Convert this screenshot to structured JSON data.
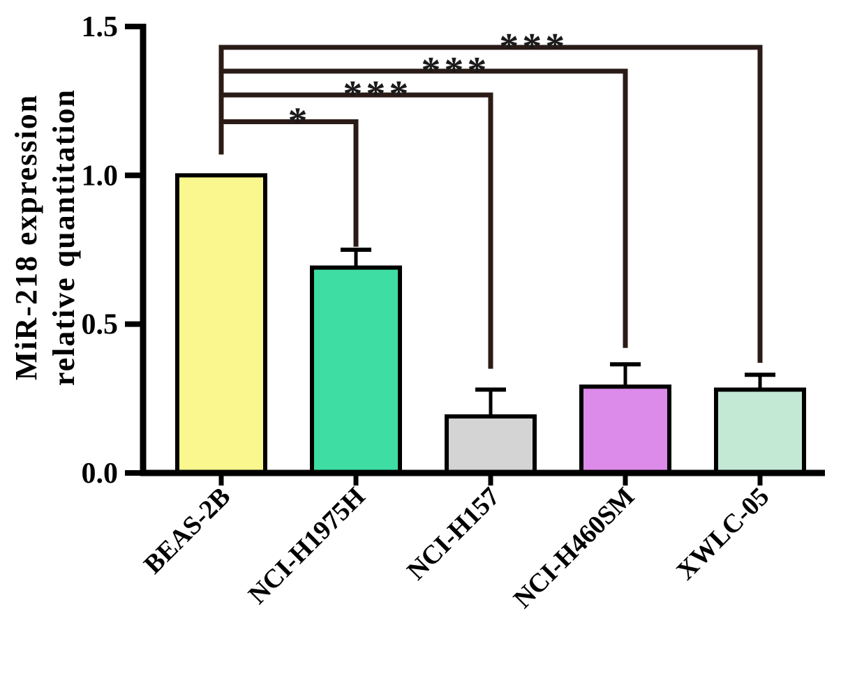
{
  "figure": {
    "description": "Bar chart of MiR-218 expression relative quantitation in five cell lines with significance brackets"
  },
  "chart_data": {
    "type": "bar",
    "title": "",
    "ylabel_lines": [
      "MiR-218 expression",
      "relative quantitation"
    ],
    "xlabel": "",
    "categories": [
      "BEAS-2B",
      "NCI-H1975H",
      "NCI-H157",
      "NCI-H460SM",
      "XWLC-05"
    ],
    "values": [
      1.0,
      0.69,
      0.19,
      0.29,
      0.28
    ],
    "errors": [
      0,
      0.06,
      0.09,
      0.075,
      0.05
    ],
    "bar_colors": [
      "#FAF78E",
      "#3EDDA4",
      "#D4D4D4",
      "#DC8BEA",
      "#C3E9D5"
    ],
    "bar_outline_color": "#000000",
    "axis_color": "#000000",
    "bracket_color": "#2B1B17",
    "star_color": "#1A1A1A",
    "ylim": [
      0,
      1.5
    ],
    "yticks": [
      0,
      0.5,
      1.0,
      1.5
    ],
    "ytick_labels": [
      "0.0",
      "0.5",
      "1.0",
      "1.5"
    ],
    "grid": false,
    "legend": "none",
    "significance_brackets": [
      {
        "from": 0,
        "to": 1,
        "label": "*",
        "level": 1.18,
        "drop_to": 0.76
      },
      {
        "from": 0,
        "to": 2,
        "label": "***",
        "level": 1.27,
        "drop_to": 0.35
      },
      {
        "from": 0,
        "to": 3,
        "label": "***",
        "level": 1.35,
        "drop_to": 0.42
      },
      {
        "from": 0,
        "to": 4,
        "label": "***",
        "level": 1.43,
        "drop_to": 0.37
      }
    ],
    "riser_start": 1.07
  }
}
